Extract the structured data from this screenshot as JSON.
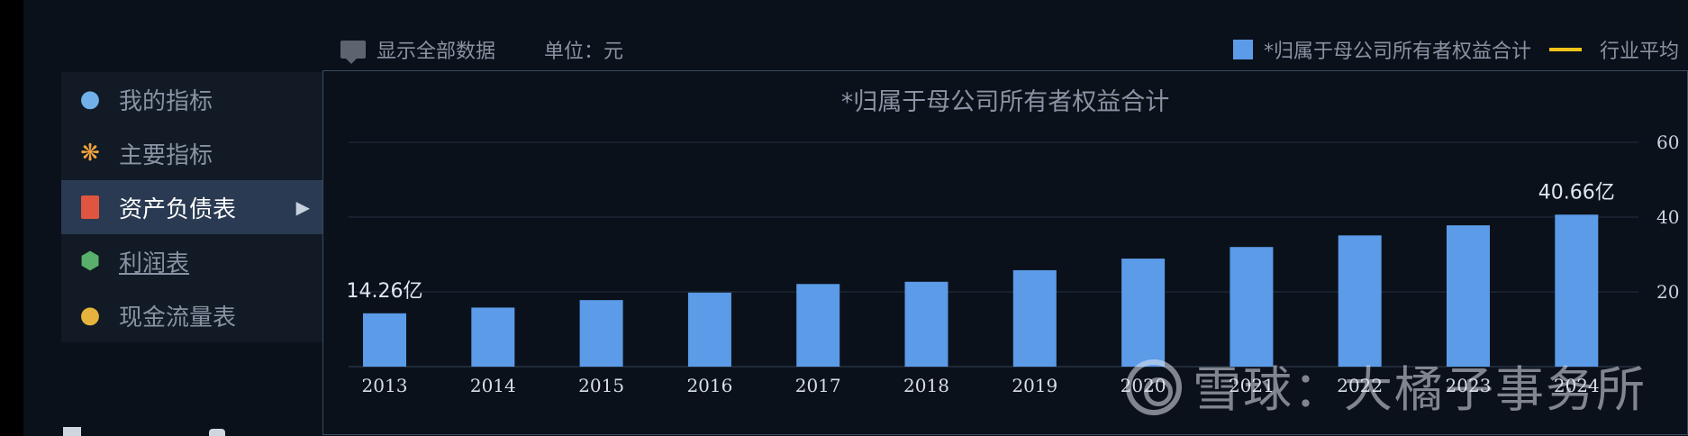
{
  "toolbar": {
    "show_all_label": "显示全部数据",
    "unit_label": "单位：元"
  },
  "legend": {
    "series_label": "*归属于母公司所有者权益合计",
    "avg_label": "行业平均"
  },
  "sidebar": {
    "items": [
      {
        "label": "我的指标",
        "icon": "user-icon"
      },
      {
        "label": "主要指标",
        "icon": "star-icon"
      },
      {
        "label": "资产负债表",
        "icon": "document-icon",
        "active": true
      },
      {
        "label": "利润表",
        "icon": "cubes-icon"
      },
      {
        "label": "现金流量表",
        "icon": "coins-icon"
      }
    ]
  },
  "watermark": {
    "text": "雪球：大橘子事务所"
  },
  "colors": {
    "bar": "#5b9be8",
    "avg_line": "#f0c419",
    "grid": "#1d2634"
  },
  "chart_data": {
    "type": "bar",
    "title": "*归属于母公司所有者权益合计",
    "categories": [
      "2013",
      "2014",
      "2015",
      "2016",
      "2017",
      "2018",
      "2019",
      "2020",
      "2021",
      "2022",
      "2023",
      "2024"
    ],
    "series": [
      {
        "name": "*归属于母公司所有者权益合计",
        "values": [
          14.26,
          15.8,
          17.8,
          19.8,
          22.1,
          22.7,
          25.8,
          28.9,
          32.0,
          35.1,
          37.8,
          40.66
        ]
      }
    ],
    "data_labels": [
      {
        "index": 0,
        "text": "14.26亿"
      },
      {
        "index": 11,
        "text": "40.66亿"
      }
    ],
    "y_ticks": [
      20,
      40,
      60
    ],
    "ylim": [
      0,
      60
    ],
    "y_axis_side": "right",
    "grid": true,
    "legend_position": "top-right"
  }
}
